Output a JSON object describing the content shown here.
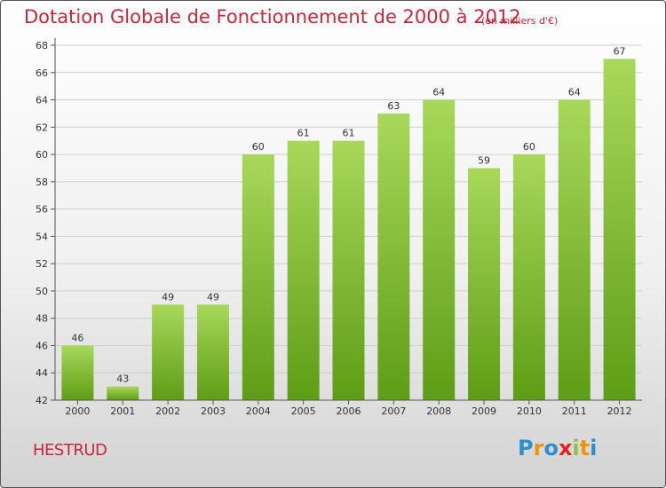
{
  "title": "Dotation Globale de Fonctionnement de 2000 à 2012",
  "unit": "(en milliers d'€)",
  "commune": "HESTRUD",
  "logo": {
    "letters": [
      "P",
      "r",
      "o",
      "x",
      "i",
      "t",
      "i"
    ],
    "colors": [
      "#2e8fd0",
      "#f29400",
      "#2e8fd0",
      "#e2231a",
      "#8bc34a",
      "#f29400",
      "#2e8fd0"
    ]
  },
  "colors": {
    "bar_light": "#a8d85a",
    "bar_dark": "#5e9d16",
    "title": "#c8263a"
  },
  "chart_data": {
    "type": "bar",
    "categories": [
      "2000",
      "2001",
      "2002",
      "2003",
      "2004",
      "2005",
      "2006",
      "2007",
      "2008",
      "2009",
      "2010",
      "2011",
      "2012"
    ],
    "values": [
      46,
      43,
      49,
      49,
      60,
      61,
      61,
      63,
      64,
      59,
      60,
      64,
      67
    ],
    "ylim": [
      42,
      68
    ],
    "yticks": [
      42,
      44,
      46,
      48,
      50,
      52,
      54,
      56,
      58,
      60,
      62,
      64,
      66,
      68
    ],
    "grid": true
  }
}
